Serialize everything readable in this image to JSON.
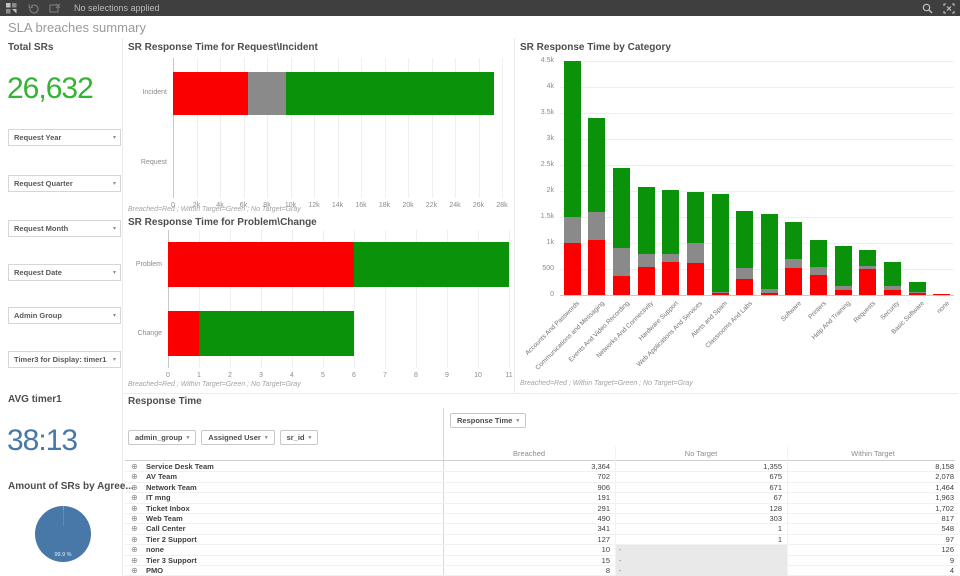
{
  "toolbar": {
    "status": "No selections applied"
  },
  "sheet_title": "SLA breaches summary",
  "colors": {
    "breached": "#fa0000",
    "no_target": "#8a8a8a",
    "within_target": "#0a930a",
    "kpi_green": "#33b433",
    "kpi_blue": "#4878a8",
    "pie_blue": "#4878a8",
    "pie_sliver": "#7b9cc0"
  },
  "kpis": {
    "total_srs": {
      "label": "Total SRs",
      "value": "26,632"
    },
    "avg_timer": {
      "label": "AVG timer1",
      "value": "38:13"
    }
  },
  "filters": [
    "Request Year",
    "Request Quarter",
    "Request Month",
    "Request Date",
    "Admin Group",
    "Timer3 for Display: timer1"
  ],
  "chart_data": [
    {
      "type": "bar",
      "orientation": "horizontal",
      "title": "SR Response Time for Request\\Incident",
      "categories": [
        "Incident",
        "Request"
      ],
      "series": [
        {
          "name": "Breached",
          "values": [
            6400,
            0
          ]
        },
        {
          "name": "No Target",
          "values": [
            3200,
            0
          ]
        },
        {
          "name": "Within Target",
          "values": [
            17700,
            0
          ]
        }
      ],
      "xlim": [
        0,
        28000
      ],
      "xticks": [
        0,
        2000,
        4000,
        6000,
        8000,
        10000,
        12000,
        14000,
        16000,
        18000,
        20000,
        22000,
        24000,
        26000,
        28000
      ],
      "xtick_labels": [
        "0",
        "2k",
        "4k",
        "6k",
        "8k",
        "10k",
        "12k",
        "14k",
        "16k",
        "18k",
        "20k",
        "22k",
        "24k",
        "26k",
        "28k"
      ],
      "footnote": "Breached=Red ; Within Target=Green ; No Target=Gray"
    },
    {
      "type": "bar",
      "orientation": "horizontal",
      "title": "SR Response Time for Problem\\Change",
      "categories": [
        "Problem",
        "Change"
      ],
      "series": [
        {
          "name": "Breached",
          "values": [
            6,
            1
          ]
        },
        {
          "name": "No Target",
          "values": [
            0,
            0
          ]
        },
        {
          "name": "Within Target",
          "values": [
            5,
            5
          ]
        }
      ],
      "xlim": [
        0,
        11
      ],
      "xticks": [
        0,
        1,
        2,
        3,
        4,
        5,
        6,
        7,
        8,
        9,
        10,
        11
      ],
      "xtick_labels": [
        "0",
        "1",
        "2",
        "3",
        "4",
        "5",
        "6",
        "7",
        "8",
        "9",
        "10",
        "11"
      ],
      "footnote": "Breached=Red ; Within Target=Green ; No Target=Gray"
    },
    {
      "type": "bar",
      "orientation": "vertical",
      "title": "SR Response Time by Category",
      "categories": [
        "Accounts And Passwords",
        "Communications and Messaging",
        "Events And Video Recording",
        "Networks And Connectivity",
        "Hardware Support",
        "Web Applications And Services",
        "Alerts and Spam",
        "Classrooms And Labs",
        "",
        "Software",
        "Printers",
        "Help And Training",
        "Requests",
        "Security",
        "Basic Software",
        "none"
      ],
      "series": [
        {
          "name": "Breached",
          "values": [
            1000,
            1050,
            370,
            530,
            640,
            620,
            50,
            300,
            40,
            520,
            390,
            100,
            500,
            100,
            30,
            15
          ]
        },
        {
          "name": "No Target",
          "values": [
            500,
            550,
            530,
            250,
            150,
            380,
            10,
            220,
            80,
            170,
            150,
            80,
            60,
            70,
            20,
            0
          ]
        },
        {
          "name": "Within Target",
          "values": [
            3000,
            1800,
            1550,
            1300,
            1230,
            980,
            1890,
            1090,
            1430,
            710,
            510,
            770,
            310,
            470,
            200,
            0
          ]
        }
      ],
      "ylim": [
        0,
        4560
      ],
      "yticks": [
        0,
        500,
        1000,
        1500,
        2000,
        2500,
        3000,
        3500,
        4000,
        4500
      ],
      "ytick_labels": [
        "0",
        "500",
        "1k",
        "1.5k",
        "2k",
        "2.5k",
        "3k",
        "3.5k",
        "4k",
        "4.5k"
      ],
      "footnote": "Breached=Red ; Within Target=Green ; No Target=Gray"
    },
    {
      "type": "pie",
      "title": "Amount of SRs by Agree...",
      "slices": [
        {
          "label": "99.9 %",
          "value": 99.9
        },
        {
          "label": "",
          "value": 0.1
        }
      ]
    }
  ],
  "table": {
    "title": "Response Time",
    "measure_chip": "Response Time",
    "dimension_chips": [
      "admin_group",
      "Assigned User",
      "sr_id"
    ],
    "columns": [
      "Breached",
      "No Target",
      "Within Target"
    ],
    "rows": [
      {
        "label": "Service Desk Team",
        "values": [
          "3,364",
          "1,355",
          "8,158"
        ]
      },
      {
        "label": "AV Team",
        "values": [
          "702",
          "675",
          "2,078"
        ]
      },
      {
        "label": "Network Team",
        "values": [
          "906",
          "671",
          "1,464"
        ]
      },
      {
        "label": "IT mng",
        "values": [
          "191",
          "67",
          "1,963"
        ]
      },
      {
        "label": "Ticket Inbox",
        "values": [
          "291",
          "128",
          "1,702"
        ]
      },
      {
        "label": "Web Team",
        "values": [
          "490",
          "303",
          "817"
        ]
      },
      {
        "label": "Call Center",
        "values": [
          "341",
          "1",
          "548"
        ]
      },
      {
        "label": "Tier 2 Support",
        "values": [
          "127",
          "1",
          "97"
        ]
      },
      {
        "label": "none",
        "values": [
          "10",
          "-",
          "126"
        ]
      },
      {
        "label": "Tier 3 Support",
        "values": [
          "15",
          "-",
          "9"
        ]
      },
      {
        "label": "PMO",
        "values": [
          "8",
          "-",
          "4"
        ]
      }
    ]
  }
}
